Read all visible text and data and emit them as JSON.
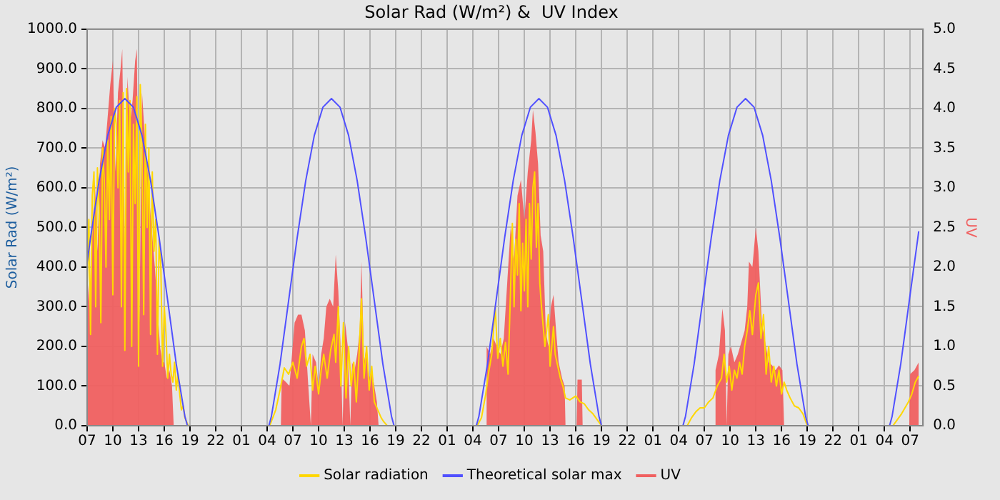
{
  "chart_data": {
    "type": "line",
    "title": "Solar Rad (W/m²) &  UV Index",
    "ylabel": "Solar Rad (W/m²)",
    "y2label": "UV",
    "legend": "bottom",
    "grid": true,
    "xlim": [
      "--01-01T07:00",
      "--01-05T08:30"
    ],
    "xticks": [
      {
        "value": "--01-01T07:00",
        "label": "07"
      },
      {
        "value": "--01-01T10:00",
        "label": "10"
      },
      {
        "value": "--01-01T13:00",
        "label": "13"
      },
      {
        "value": "--01-01T16:00",
        "label": "16"
      },
      {
        "value": "--01-01T19:00",
        "label": "19"
      },
      {
        "value": "--01-01T22:00",
        "label": "22"
      },
      {
        "value": "--01-02T01:00",
        "label": "01"
      },
      {
        "value": "--01-02T04:00",
        "label": "04"
      },
      {
        "value": "--01-02T07:00",
        "label": "07"
      },
      {
        "value": "--01-02T10:00",
        "label": "10"
      },
      {
        "value": "--01-02T13:00",
        "label": "13"
      },
      {
        "value": "--01-02T16:00",
        "label": "16"
      },
      {
        "value": "--01-02T19:00",
        "label": "19"
      },
      {
        "value": "--01-02T22:00",
        "label": "22"
      },
      {
        "value": "--01-03T01:00",
        "label": "01"
      },
      {
        "value": "--01-03T04:00",
        "label": "04"
      },
      {
        "value": "--01-03T07:00",
        "label": "07"
      },
      {
        "value": "--01-03T10:00",
        "label": "10"
      },
      {
        "value": "--01-03T13:00",
        "label": "13"
      },
      {
        "value": "--01-03T16:00",
        "label": "16"
      },
      {
        "value": "--01-03T19:00",
        "label": "19"
      },
      {
        "value": "--01-03T22:00",
        "label": "22"
      },
      {
        "value": "--01-04T01:00",
        "label": "01"
      },
      {
        "value": "--01-04T04:00",
        "label": "04"
      },
      {
        "value": "--01-04T07:00",
        "label": "07"
      },
      {
        "value": "--01-04T10:00",
        "label": "10"
      },
      {
        "value": "--01-04T13:00",
        "label": "13"
      },
      {
        "value": "--01-04T16:00",
        "label": "16"
      },
      {
        "value": "--01-04T19:00",
        "label": "19"
      },
      {
        "value": "--01-04T22:00",
        "label": "22"
      },
      {
        "value": "--01-05T01:00",
        "label": "01"
      },
      {
        "value": "--01-05T04:00",
        "label": "04"
      },
      {
        "value": "--01-05T07:00",
        "label": "07"
      }
    ],
    "ylim": [
      0,
      1000
    ],
    "yticks": [
      {
        "value": 0,
        "label": "0.0"
      },
      {
        "value": 100,
        "label": "100.0"
      },
      {
        "value": 200,
        "label": "200.0"
      },
      {
        "value": 300,
        "label": "300.0"
      },
      {
        "value": 400,
        "label": "400.0"
      },
      {
        "value": 500,
        "label": "500.0"
      },
      {
        "value": 600,
        "label": "600.0"
      },
      {
        "value": 700,
        "label": "700.0"
      },
      {
        "value": 800,
        "label": "800.0"
      },
      {
        "value": 900,
        "label": "900.0"
      },
      {
        "value": 1000,
        "label": "1000.0"
      }
    ],
    "y2lim": [
      0,
      5
    ],
    "y2ticks": [
      {
        "value": 0,
        "label": "0.0"
      },
      {
        "value": 0.5,
        "label": "0.5"
      },
      {
        "value": 1,
        "label": "1.0"
      },
      {
        "value": 1.5,
        "label": "1.5"
      },
      {
        "value": 2,
        "label": "2.0"
      },
      {
        "value": 2.5,
        "label": "2.5"
      },
      {
        "value": 3,
        "label": "3.0"
      },
      {
        "value": 3.5,
        "label": "3.5"
      },
      {
        "value": 4,
        "label": "4.0"
      },
      {
        "value": 4.5,
        "label": "4.5"
      },
      {
        "value": 5,
        "label": "5.0"
      }
    ],
    "series": [
      {
        "name": "Solar radiation",
        "type": "line",
        "color": "#ffd700",
        "x": [
          "--01-01T07:00",
          "--01-01T07:12",
          "--01-01T07:24",
          "--01-01T07:36",
          "--01-01T07:48",
          "--01-01T08:00",
          "--01-01T08:12",
          "--01-01T08:24",
          "--01-01T08:36",
          "--01-01T08:48",
          "--01-01T09:00",
          "--01-01T09:12",
          "--01-01T09:24",
          "--01-01T09:36",
          "--01-01T09:48",
          "--01-01T10:00",
          "--01-01T10:12",
          "--01-01T10:24",
          "--01-01T10:36",
          "--01-01T10:48",
          "--01-01T11:00",
          "--01-01T11:12",
          "--01-01T11:24",
          "--01-01T11:36",
          "--01-01T11:48",
          "--01-01T12:00",
          "--01-01T12:12",
          "--01-01T12:24",
          "--01-01T12:36",
          "--01-01T12:48",
          "--01-01T13:00",
          "--01-01T13:12",
          "--01-01T13:24",
          "--01-01T13:36",
          "--01-01T13:48",
          "--01-01T14:00",
          "--01-01T14:12",
          "--01-01T14:24",
          "--01-01T14:36",
          "--01-01T14:48",
          "--01-01T15:00",
          "--01-01T15:12",
          "--01-01T15:24",
          "--01-01T15:36",
          "--01-01T15:48",
          "--01-01T16:00",
          "--01-01T16:12",
          "--01-01T16:24",
          "--01-01T16:36",
          "--01-01T16:48",
          "--01-01T17:00",
          "--01-01T17:12",
          "--01-01T17:24",
          "--01-01T17:36",
          "--01-01T17:48",
          "--01-01T18:00",
          "--01-01T18:12",
          "--01-01T18:24",
          "--01-01T18:36",
          "--01-01T18:48",
          "--01-02T04:18",
          "--01-02T05:00",
          "--01-02T05:30",
          "--01-02T06:00",
          "--01-02T06:30",
          "--01-02T07:00",
          "--01-02T07:30",
          "--01-02T08:00",
          "--01-02T08:18",
          "--01-02T08:36",
          "--01-02T09:00",
          "--01-02T09:18",
          "--01-02T09:36",
          "--01-02T10:00",
          "--01-02T10:18",
          "--01-02T10:36",
          "--01-02T11:00",
          "--01-02T11:24",
          "--01-02T11:48",
          "--01-02T12:00",
          "--01-02T12:18",
          "--01-02T12:36",
          "--01-02T12:54",
          "--01-02T13:12",
          "--01-02T13:30",
          "--01-02T13:48",
          "--01-02T14:06",
          "--01-02T14:24",
          "--01-02T14:42",
          "--01-02T15:00",
          "--01-02T15:18",
          "--01-02T15:36",
          "--01-02T15:54",
          "--01-02T16:12",
          "--01-02T16:30",
          "--01-02T16:54",
          "--01-02T17:18",
          "--01-02T17:36",
          "--01-02T18:00",
          "--01-03T04:30",
          "--01-03T05:00",
          "--01-03T05:30",
          "--01-03T05:48",
          "--01-03T06:12",
          "--01-03T06:36",
          "--01-03T06:54",
          "--01-03T07:12",
          "--01-03T07:30",
          "--01-03T07:48",
          "--01-03T08:06",
          "--01-03T08:24",
          "--01-03T08:36",
          "--01-03T08:48",
          "--01-03T09:00",
          "--01-03T09:12",
          "--01-03T09:24",
          "--01-03T09:36",
          "--01-03T09:48",
          "--01-03T10:00",
          "--01-03T10:12",
          "--01-03T10:24",
          "--01-03T10:36",
          "--01-03T10:48",
          "--01-03T11:00",
          "--01-03T11:12",
          "--01-03T11:24",
          "--01-03T11:36",
          "--01-03T11:48",
          "--01-03T12:00",
          "--01-03T12:12",
          "--01-03T12:24",
          "--01-03T12:36",
          "--01-03T12:48",
          "--01-03T13:00",
          "--01-03T13:12",
          "--01-03T13:24",
          "--01-03T13:36",
          "--01-03T13:54",
          "--01-03T14:12",
          "--01-03T14:30",
          "--01-03T14:48",
          "--01-03T15:18",
          "--01-03T16:00",
          "--01-03T16:30",
          "--01-03T17:00",
          "--01-03T17:30",
          "--01-03T18:00",
          "--01-03T18:30",
          "--01-03T19:00",
          "--01-04T05:00",
          "--01-04T05:30",
          "--01-04T06:00",
          "--01-04T06:30",
          "--01-04T07:00",
          "--01-04T07:30",
          "--01-04T08:00",
          "--01-04T08:30",
          "--01-04T09:00",
          "--01-04T09:18",
          "--01-04T09:36",
          "--01-04T09:54",
          "--01-04T10:12",
          "--01-04T10:30",
          "--01-04T10:48",
          "--01-04T11:06",
          "--01-04T11:24",
          "--01-04T11:42",
          "--01-04T12:00",
          "--01-04T12:18",
          "--01-04T12:36",
          "--01-04T13:00",
          "--01-04T13:18",
          "--01-04T13:36",
          "--01-04T13:54",
          "--01-04T14:12",
          "--01-04T14:30",
          "--01-04T14:48",
          "--01-04T15:06",
          "--01-04T15:24",
          "--01-04T15:42",
          "--01-04T16:00",
          "--01-04T16:18",
          "--01-04T16:36",
          "--01-04T17:00",
          "--01-04T17:30",
          "--01-04T18:00",
          "--01-04T18:30",
          "--01-04T19:00",
          "--01-05T05:00",
          "--01-05T05:30",
          "--01-05T06:00",
          "--01-05T06:24",
          "--01-05T06:48",
          "--01-05T07:12",
          "--01-05T07:36",
          "--01-05T08:00"
        ],
        "values": [
          350,
          520,
          230,
          580,
          640,
          300,
          650,
          550,
          260,
          700,
          620,
          400,
          720,
          520,
          780,
          330,
          800,
          760,
          600,
          820,
          300,
          840,
          190,
          850,
          640,
          820,
          200,
          760,
          560,
          830,
          150,
          860,
          700,
          280,
          760,
          500,
          700,
          230,
          640,
          440,
          520,
          180,
          470,
          400,
          150,
          300,
          230,
          120,
          180,
          130,
          110,
          160,
          90,
          130,
          80,
          40,
          50,
          20,
          10,
          0,
          0,
          40,
          90,
          146,
          130,
          160,
          120,
          200,
          220,
          150,
          180,
          90,
          150,
          80,
          140,
          180,
          120,
          190,
          230,
          160,
          300,
          100,
          260,
          70,
          200,
          100,
          160,
          60,
          170,
          320,
          120,
          200,
          90,
          150,
          60,
          40,
          20,
          10,
          0,
          0,
          20,
          80,
          130,
          180,
          300,
          170,
          220,
          150,
          210,
          130,
          350,
          510,
          300,
          470,
          380,
          560,
          290,
          460,
          340,
          520,
          300,
          560,
          420,
          600,
          640,
          450,
          560,
          360,
          300,
          250,
          200,
          240,
          280,
          150,
          200,
          250,
          180,
          150,
          120,
          100,
          70,
          65,
          75,
          60,
          55,
          40,
          30,
          15,
          0,
          0,
          20,
          35,
          45,
          45,
          60,
          70,
          100,
          120,
          180,
          110,
          150,
          90,
          140,
          120,
          160,
          130,
          200,
          240,
          290,
          230,
          330,
          360,
          220,
          280,
          130,
          200,
          110,
          150,
          100,
          140,
          80,
          110,
          90,
          70,
          50,
          45,
          30,
          0,
          0,
          15,
          30,
          45,
          60,
          80,
          110,
          125
        ]
      },
      {
        "name": "Theoretical solar max",
        "type": "line",
        "color": "#5050ff",
        "x": [
          "--01-01T07:00",
          "--01-01T07:24",
          "--01-01T08:24",
          "--01-01T09:24",
          "--01-01T10:24",
          "--01-01T11:24",
          "--01-01T12:24",
          "--01-01T13:24",
          "--01-01T14:24",
          "--01-01T15:24",
          "--01-01T16:24",
          "--01-01T17:24",
          "--01-01T18:24",
          "--01-01T18:42",
          "--01-02T04:12",
          "--01-02T04:30",
          "--01-02T05:30",
          "--01-02T06:30",
          "--01-02T07:30",
          "--01-02T08:30",
          "--01-02T09:30",
          "--01-02T10:30",
          "--01-02T11:30",
          "--01-02T12:30",
          "--01-02T13:30",
          "--01-02T14:30",
          "--01-02T15:30",
          "--01-02T16:30",
          "--01-02T17:30",
          "--01-02T18:30",
          "--01-02T18:48",
          "--01-03T04:24",
          "--01-03T04:42",
          "--01-03T05:42",
          "--01-03T06:42",
          "--01-03T07:42",
          "--01-03T08:42",
          "--01-03T09:42",
          "--01-03T10:42",
          "--01-03T11:42",
          "--01-03T12:42",
          "--01-03T13:42",
          "--01-03T14:42",
          "--01-03T15:42",
          "--01-03T16:42",
          "--01-03T17:42",
          "--01-03T18:42",
          "--01-03T19:00",
          "--01-04T04:30",
          "--01-04T04:48",
          "--01-04T05:48",
          "--01-04T06:48",
          "--01-04T07:48",
          "--01-04T08:48",
          "--01-04T09:48",
          "--01-04T10:48",
          "--01-04T11:48",
          "--01-04T12:48",
          "--01-04T13:48",
          "--01-04T14:48",
          "--01-04T15:48",
          "--01-04T16:48",
          "--01-04T17:48",
          "--01-04T18:48",
          "--01-04T19:06",
          "--01-05T04:36",
          "--01-05T04:54",
          "--01-05T05:54",
          "--01-05T06:54",
          "--01-05T07:54",
          "--01-05T08:00"
        ],
        "values": [
          412,
          474,
          618,
          732,
          803,
          825,
          803,
          732,
          618,
          474,
          315,
          155,
          24,
          0,
          0,
          24,
          155,
          315,
          474,
          618,
          732,
          803,
          825,
          803,
          732,
          618,
          474,
          315,
          155,
          24,
          0,
          0,
          24,
          155,
          315,
          474,
          618,
          732,
          803,
          825,
          803,
          732,
          618,
          474,
          315,
          155,
          24,
          0,
          0,
          24,
          155,
          315,
          474,
          618,
          732,
          803,
          825,
          803,
          732,
          618,
          474,
          315,
          155,
          24,
          0,
          0,
          24,
          155,
          315,
          474,
          490
        ]
      },
      {
        "name": "UV",
        "type": "area",
        "axis": "y2",
        "color": "#f06060",
        "x": [
          "--01-01T07:00",
          "--01-01T07:18",
          "--01-01T07:36",
          "--01-01T07:54",
          "--01-01T08:12",
          "--01-01T08:30",
          "--01-01T08:48",
          "--01-01T09:06",
          "--01-01T09:24",
          "--01-01T09:42",
          "--01-01T10:00",
          "--01-01T10:18",
          "--01-01T10:36",
          "--01-01T10:54",
          "--01-01T11:06",
          "--01-01T11:24",
          "--01-01T11:42",
          "--01-01T12:00",
          "--01-01T12:18",
          "--01-01T12:36",
          "--01-01T12:48",
          "--01-01T13:06",
          "--01-01T13:24",
          "--01-01T13:42",
          "--01-01T14:00",
          "--01-01T14:18",
          "--01-01T14:36",
          "--01-01T14:54",
          "--01-01T15:12",
          "--01-01T15:30",
          "--01-01T15:48",
          "--01-01T16:00",
          "--01-01T16:18",
          "--01-01T16:36",
          "--01-01T16:54",
          "--01-01T17:06",
          "--01-02T05:36",
          "--01-02T05:42",
          "--01-02T06:12",
          "--01-02T06:36",
          "--01-02T06:54",
          "--01-02T07:12",
          "--01-02T07:36",
          "--01-02T08:00",
          "--01-02T08:24",
          "--01-02T08:48",
          "--01-02T09:06",
          "--01-02T09:18",
          "--01-02T09:42",
          "--01-02T10:00",
          "--01-02T10:18",
          "--01-02T10:36",
          "--01-02T10:54",
          "--01-02T11:18",
          "--01-02T11:42",
          "--01-02T12:00",
          "--01-02T12:18",
          "--01-02T12:36",
          "--01-02T12:48",
          "--01-02T13:06",
          "--01-02T13:24",
          "--01-02T13:42",
          "--01-02T13:54",
          "--01-02T14:12",
          "--01-02T14:30",
          "--01-02T14:48",
          "--01-02T15:00",
          "--01-02T15:18",
          "--01-02T15:36",
          "--01-02T15:54",
          "--01-02T16:12",
          "--01-02T16:30",
          "--01-02T16:48",
          "--01-02T17:00",
          "--01-03T05:30",
          "--01-03T05:36",
          "--01-03T06:00",
          "--01-03T06:24",
          "--01-03T06:48",
          "--01-03T07:12",
          "--01-03T07:36",
          "--01-03T08:00",
          "--01-03T08:24",
          "--01-03T08:48",
          "--01-03T09:12",
          "--01-03T09:36",
          "--01-03T10:00",
          "--01-03T10:24",
          "--01-03T10:48",
          "--01-03T11:00",
          "--01-03T11:18",
          "--01-03T11:36",
          "--01-03T11:54",
          "--01-03T12:12",
          "--01-03T12:30",
          "--01-03T12:48",
          "--01-03T13:06",
          "--01-03T13:24",
          "--01-03T13:42",
          "--01-03T14:00",
          "--01-03T14:24",
          "--01-03T14:42",
          "--01-03T14:48",
          "--01-03T16:06",
          "--01-03T16:12",
          "--01-03T16:42",
          "--01-03T16:48",
          "--01-04T08:12",
          "--01-04T08:18",
          "--01-04T08:42",
          "--01-04T09:06",
          "--01-04T09:24",
          "--01-04T09:36",
          "--01-04T09:48",
          "--01-04T10:06",
          "--01-04T10:30",
          "--01-04T10:54",
          "--01-04T11:18",
          "--01-04T11:42",
          "--01-04T12:00",
          "--01-04T12:12",
          "--01-04T12:36",
          "--01-04T13:00",
          "--01-04T13:18",
          "--01-04T13:42",
          "--01-04T14:06",
          "--01-04T14:30",
          "--01-04T14:54",
          "--01-04T15:18",
          "--01-04T15:42",
          "--01-04T16:06",
          "--01-04T16:18",
          "--01-05T06:54",
          "--01-05T07:00",
          "--01-05T07:30",
          "--01-05T08:00"
        ],
        "values": [
          1.9,
          1.5,
          2.4,
          3.1,
          2.2,
          3.3,
          3.6,
          3.5,
          3.9,
          4.3,
          4.6,
          3.2,
          4.2,
          4.5,
          4.75,
          2.0,
          4.4,
          3.8,
          4.1,
          4.6,
          4.75,
          1.3,
          4.2,
          3.7,
          3.3,
          2.8,
          2.4,
          2.0,
          1.5,
          1.0,
          0.8,
          0.8,
          0.6,
          0.7,
          0.5,
          0,
          0,
          0.6,
          0.55,
          0.5,
          0.9,
          1.3,
          1.4,
          1.4,
          1.2,
          0.5,
          0,
          0.9,
          0.8,
          0.5,
          0.9,
          1.1,
          1.5,
          1.6,
          1.5,
          2.16,
          1.7,
          0.9,
          0,
          1.3,
          1.0,
          0,
          0.8,
          0.7,
          0.9,
          1.2,
          2.07,
          0.8,
          1.0,
          0.6,
          0.7,
          0.5,
          0.3,
          0,
          0,
          1.0,
          0.9,
          1.1,
          1.0,
          0.9,
          1.1,
          1.8,
          2.5,
          2.1,
          2.9,
          3.1,
          2.6,
          3.2,
          3.6,
          3.98,
          3.7,
          3.3,
          2.4,
          2.2,
          1.2,
          1.0,
          1.5,
          1.65,
          1.2,
          0.8,
          0.6,
          0.5,
          0,
          0,
          0.58,
          0.58,
          0,
          0,
          0.7,
          0.9,
          1.48,
          1.2,
          0,
          0.9,
          1.0,
          0.8,
          0.9,
          1.05,
          1.2,
          1.5,
          2.07,
          2.0,
          2.5,
          2.2,
          1.3,
          1.05,
          0.8,
          0.76,
          0.7,
          0.76,
          0.7,
          0,
          0,
          0.65,
          0.7,
          0.8
        ]
      }
    ]
  }
}
